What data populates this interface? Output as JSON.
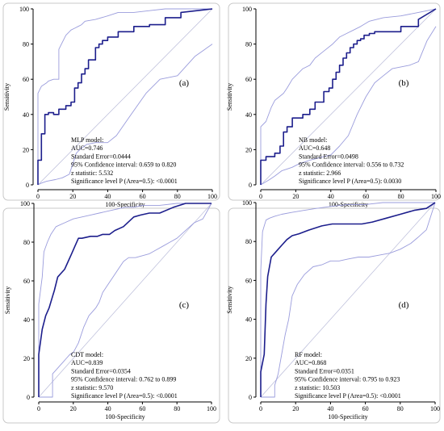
{
  "colors": {
    "roc_curve": "#1c1e8c",
    "ci_band": "#9a9cdc",
    "diagonal": "#b8bad8",
    "frame": "#000000",
    "panel_border": "#c8c8c8"
  },
  "chart_data": [
    {
      "type": "line",
      "panel_label": "(a)",
      "xlabel": "100-Specificity",
      "ylabel": "Sensitivity",
      "xlim": [
        0,
        100
      ],
      "ylim": [
        0,
        100
      ],
      "xticks": [
        0,
        20,
        40,
        60,
        80,
        100
      ],
      "yticks": [
        0,
        20,
        40,
        60,
        80,
        100
      ],
      "annotation": [
        "MLP model:",
        "AUC=0.746",
        "Standard Error=0.0444",
        "95% Confidence interval: 0.659 to 0.820",
        "z statistic: 5.532",
        "Significance level P (Area=0.5): <0.0001"
      ],
      "series": [
        {
          "role": "roc",
          "x": [
            0,
            0,
            2,
            2,
            4,
            4,
            6,
            6,
            9,
            9,
            12,
            12,
            16,
            16,
            19,
            19,
            21,
            21,
            23,
            23,
            25,
            25,
            27,
            27,
            29,
            29,
            33,
            33,
            35,
            35,
            37,
            37,
            40,
            40,
            46,
            46,
            55,
            55,
            64,
            64,
            73,
            73,
            82,
            82,
            100
          ],
          "y": [
            0,
            14,
            14,
            29,
            29,
            40,
            40,
            41,
            41,
            40,
            40,
            43,
            43,
            45,
            45,
            47,
            47,
            55,
            55,
            58,
            58,
            63,
            63,
            66,
            66,
            71,
            71,
            78,
            78,
            80,
            80,
            82,
            82,
            84,
            84,
            87,
            87,
            90,
            90,
            91,
            91,
            95,
            95,
            98,
            100
          ]
        },
        {
          "role": "ci_upper",
          "x": [
            0,
            0,
            2,
            5,
            6,
            9,
            12,
            12,
            16,
            19,
            21,
            23,
            25,
            27,
            33,
            40,
            46,
            55,
            64,
            73,
            82,
            100
          ],
          "y": [
            0,
            52,
            56,
            58,
            59,
            60,
            60,
            77,
            85,
            88,
            89,
            90,
            91,
            93,
            94,
            96,
            98,
            98,
            99,
            100,
            100,
            100
          ]
        },
        {
          "role": "ci_lower",
          "x": [
            0,
            2,
            5,
            10,
            14,
            18,
            20,
            22,
            24,
            28,
            33,
            40,
            45,
            52,
            62,
            70,
            80,
            90,
            100
          ],
          "y": [
            0,
            1,
            2,
            3,
            4,
            6,
            12,
            18,
            20,
            23,
            24,
            24,
            28,
            38,
            52,
            60,
            62,
            73,
            80
          ]
        },
        {
          "role": "diagonal",
          "x": [
            0,
            100
          ],
          "y": [
            0,
            100
          ]
        }
      ]
    },
    {
      "type": "line",
      "panel_label": "(b)",
      "xlabel": "100-Specificity",
      "ylabel": "Sensitivity",
      "xlim": [
        0,
        100
      ],
      "ylim": [
        0,
        100
      ],
      "xticks": [
        0,
        20,
        40,
        60,
        80,
        100
      ],
      "yticks": [
        0,
        20,
        40,
        60,
        80,
        100
      ],
      "annotation": [
        "NB model:",
        "AUC=0.648",
        "Standard Error=0.0498",
        "95% Confidence interval: 0.556 to 0.732",
        "z statistic: 2.966",
        "Significance level P (Area=0.5): 0.0030"
      ],
      "series": [
        {
          "role": "roc",
          "x": [
            0,
            0,
            3,
            3,
            8,
            8,
            11,
            11,
            13,
            13,
            15,
            15,
            18,
            18,
            24,
            24,
            28,
            28,
            31,
            31,
            36,
            36,
            39,
            39,
            41,
            41,
            43,
            43,
            45,
            45,
            47,
            47,
            49,
            49,
            51,
            51,
            53,
            53,
            55,
            55,
            57,
            57,
            59,
            59,
            62,
            62,
            65,
            65,
            80,
            80,
            90,
            90,
            100
          ],
          "y": [
            0,
            14,
            14,
            16,
            16,
            18,
            18,
            22,
            22,
            30,
            30,
            33,
            33,
            38,
            38,
            40,
            40,
            43,
            43,
            47,
            47,
            53,
            53,
            55,
            55,
            60,
            60,
            64,
            64,
            68,
            68,
            72,
            72,
            75,
            75,
            78,
            78,
            80,
            80,
            82,
            82,
            83,
            83,
            85,
            85,
            86,
            86,
            87,
            87,
            90,
            90,
            94,
            100
          ]
        },
        {
          "role": "ci_upper",
          "x": [
            0,
            0,
            3,
            6,
            8,
            13,
            15,
            18,
            24,
            28,
            31,
            36,
            41,
            45,
            49,
            53,
            57,
            62,
            70,
            80,
            90,
            100
          ],
          "y": [
            0,
            33,
            36,
            44,
            48,
            52,
            55,
            60,
            66,
            68,
            72,
            76,
            80,
            84,
            86,
            88,
            90,
            93,
            95,
            96,
            98,
            100
          ]
        },
        {
          "role": "ci_lower",
          "x": [
            0,
            5,
            8,
            12,
            15,
            18,
            22,
            25,
            28,
            32,
            36,
            40,
            45,
            50,
            55,
            60,
            65,
            70,
            75,
            80,
            85,
            90,
            95,
            100
          ],
          "y": [
            0,
            3,
            5,
            8,
            9,
            10,
            12,
            13,
            14,
            15,
            16,
            17,
            22,
            28,
            40,
            50,
            58,
            62,
            66,
            67,
            68,
            70,
            82,
            90
          ]
        },
        {
          "role": "diagonal",
          "x": [
            0,
            100
          ],
          "y": [
            0,
            100
          ]
        }
      ]
    },
    {
      "type": "line",
      "panel_label": "(c)",
      "xlabel": "100-Specificity",
      "ylabel": "Sensitivity",
      "xlim": [
        0,
        100
      ],
      "ylim": [
        0,
        100
      ],
      "xticks": [
        0,
        20,
        40,
        60,
        80,
        100
      ],
      "yticks": [
        0,
        20,
        40,
        60,
        80,
        100
      ],
      "annotation": [
        "CDT model:",
        "AUC=0.839",
        "Standard Error=0.0354",
        "95% Confidence interval: 0.762 to 0.899",
        "z statistic: 9.570",
        "Significance level P (Area=0.5): <0.0001"
      ],
      "series": [
        {
          "role": "roc",
          "x": [
            0,
            0,
            2,
            4,
            6,
            8,
            9,
            11,
            13,
            15,
            17,
            19,
            21,
            23,
            25,
            30,
            34,
            37,
            41,
            44,
            49,
            55,
            59,
            64,
            70,
            78,
            85,
            100
          ],
          "y": [
            0,
            22,
            35,
            42,
            46,
            52,
            55,
            62,
            64,
            66,
            70,
            74,
            78,
            82,
            82,
            83,
            83,
            84,
            84,
            86,
            88,
            93,
            94,
            95,
            95,
            98,
            100,
            100
          ]
        },
        {
          "role": "ci_upper",
          "x": [
            0,
            0,
            2,
            3,
            5,
            7,
            10,
            15,
            20,
            25,
            30,
            35,
            40,
            45,
            50,
            55,
            60,
            70,
            80,
            90,
            100
          ],
          "y": [
            0,
            48,
            62,
            75,
            80,
            84,
            88,
            90,
            92,
            93,
            94,
            95,
            96,
            97,
            98,
            98,
            99,
            99,
            100,
            100,
            100
          ]
        },
        {
          "role": "ci_lower",
          "x": [
            0,
            8,
            8,
            10,
            12,
            14,
            16,
            18,
            20,
            23,
            26,
            29,
            31,
            33,
            35,
            37,
            40,
            43,
            46,
            49,
            52,
            56,
            60,
            64,
            68,
            72,
            76,
            80,
            85,
            90,
            95,
            100
          ],
          "y": [
            0,
            0,
            12,
            14,
            16,
            18,
            20,
            22,
            23,
            28,
            36,
            42,
            44,
            46,
            49,
            54,
            58,
            62,
            66,
            70,
            72,
            72,
            73,
            74,
            76,
            78,
            80,
            82,
            86,
            90,
            92,
            100
          ]
        },
        {
          "role": "diagonal",
          "x": [
            0,
            100
          ],
          "y": [
            0,
            100
          ]
        }
      ]
    },
    {
      "type": "line",
      "panel_label": "(d)",
      "xlabel": "100-Specificity",
      "ylabel": "Sensitivity",
      "xlim": [
        0,
        100
      ],
      "ylim": [
        0,
        100
      ],
      "xticks": [
        0,
        20,
        40,
        60,
        80,
        100
      ],
      "yticks": [
        0,
        20,
        40,
        60,
        80,
        100
      ],
      "annotation": [
        "RF model:",
        "AUC=0.868",
        "Standard Error=0.0351",
        "95% Confidence interval: 0.795 to 0.923",
        "z statistic: 10.503",
        "Significance level P (Area=0.5): <0.0001"
      ],
      "series": [
        {
          "role": "roc",
          "x": [
            0,
            0,
            2,
            3,
            4,
            6,
            8,
            10,
            12,
            15,
            18,
            22,
            28,
            35,
            41,
            49,
            58,
            64,
            72,
            80,
            88,
            95,
            100
          ],
          "y": [
            0,
            13,
            22,
            48,
            62,
            72,
            74,
            76,
            78,
            81,
            83,
            84,
            86,
            88,
            89,
            89,
            89,
            90,
            92,
            94,
            96,
            97,
            100
          ]
        },
        {
          "role": "ci_upper",
          "x": [
            0,
            0,
            1,
            2,
            3,
            5,
            8,
            12,
            18,
            25,
            32,
            40,
            50,
            60,
            70,
            80,
            90,
            100
          ],
          "y": [
            0,
            65,
            85,
            88,
            91,
            92,
            93,
            94,
            95,
            96,
            97,
            98,
            99,
            99,
            100,
            100,
            100,
            100
          ]
        },
        {
          "role": "ci_lower",
          "x": [
            0,
            8,
            8,
            10,
            12,
            14,
            16,
            18,
            21,
            25,
            30,
            35,
            40,
            45,
            50,
            56,
            62,
            68,
            74,
            80,
            86,
            90,
            95,
            100
          ],
          "y": [
            0,
            0,
            6,
            12,
            22,
            32,
            40,
            52,
            58,
            63,
            67,
            68,
            70,
            70,
            71,
            72,
            72,
            73,
            74,
            76,
            79,
            82,
            86,
            100
          ]
        },
        {
          "role": "diagonal",
          "x": [
            0,
            100
          ],
          "y": [
            0,
            100
          ]
        }
      ]
    }
  ]
}
